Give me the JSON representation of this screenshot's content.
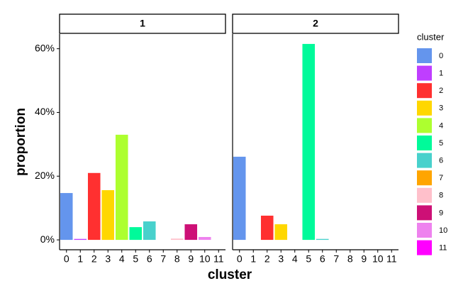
{
  "chart_data": {
    "type": "bar",
    "x_label": "cluster",
    "y_label": "proportion",
    "legend_title": "cluster",
    "categories": [
      "0",
      "1",
      "2",
      "3",
      "4",
      "5",
      "6",
      "7",
      "8",
      "9",
      "10",
      "11"
    ],
    "colors": [
      "#6495ED",
      "#BF3EFF",
      "#FF3030",
      "#FFD700",
      "#ADFF2F",
      "#00FA9A",
      "#48D1CC",
      "#FFA500",
      "#FFC0CB",
      "#CD1076",
      "#EE82EE",
      "#FF00FF"
    ],
    "ylim": [
      -3.1,
      64.6
    ],
    "yticks": [
      {
        "value": 0,
        "label": "0%"
      },
      {
        "value": 20,
        "label": "20%"
      },
      {
        "value": 40,
        "label": "40%"
      },
      {
        "value": 60,
        "label": "60%"
      }
    ],
    "facets": [
      {
        "title": "1",
        "values": [
          14.7,
          0.3,
          21,
          15.6,
          33,
          4,
          5.8,
          0,
          0.4,
          4.9,
          0.9,
          0
        ]
      },
      {
        "title": "2",
        "values": [
          26.1,
          0,
          7.6,
          4.9,
          0,
          61.5,
          0.3,
          0,
          0,
          0,
          0,
          0
        ]
      }
    ]
  }
}
